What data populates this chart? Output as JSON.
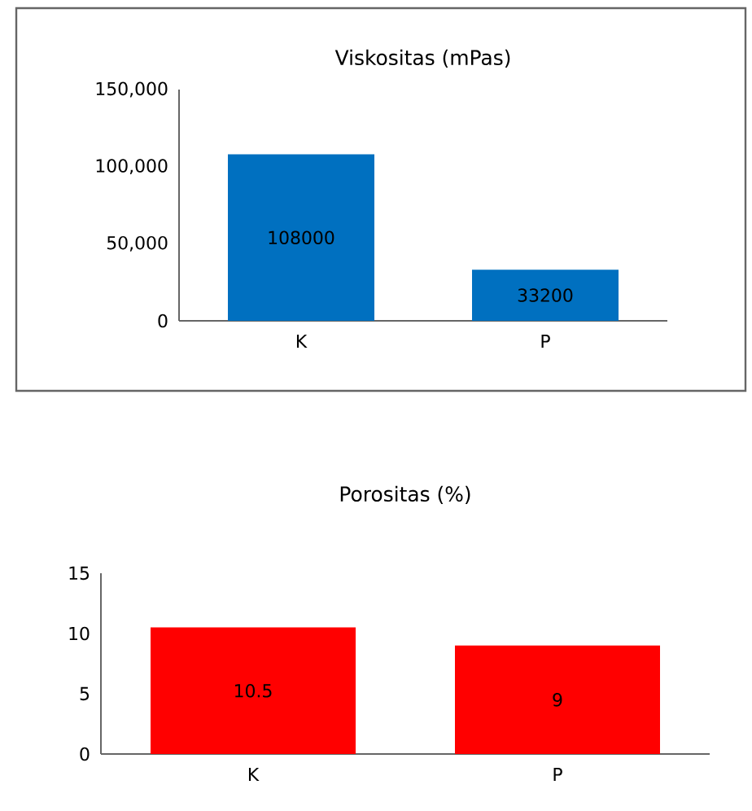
{
  "chart_data": [
    {
      "type": "bar",
      "title": "Viskositas (mPas)",
      "categories": [
        "K",
        "P"
      ],
      "values": [
        108000,
        33200
      ],
      "color": "#0070c0",
      "ylim": [
        0,
        150000
      ],
      "yticks": [
        0,
        {
          "value": 50000,
          "label": "50,000"
        },
        {
          "value": 100000,
          "label": "100,000"
        },
        {
          "value": 150000,
          "label": "150,000"
        }
      ],
      "data_labels": true
    },
    {
      "type": "bar",
      "title": "Porositas (%)",
      "categories": [
        "K",
        "P"
      ],
      "values": [
        10.5,
        9
      ],
      "color": "#ff0000",
      "ylim": [
        0,
        15
      ],
      "yticks": [
        0,
        5,
        10,
        15
      ],
      "data_labels": true
    }
  ]
}
